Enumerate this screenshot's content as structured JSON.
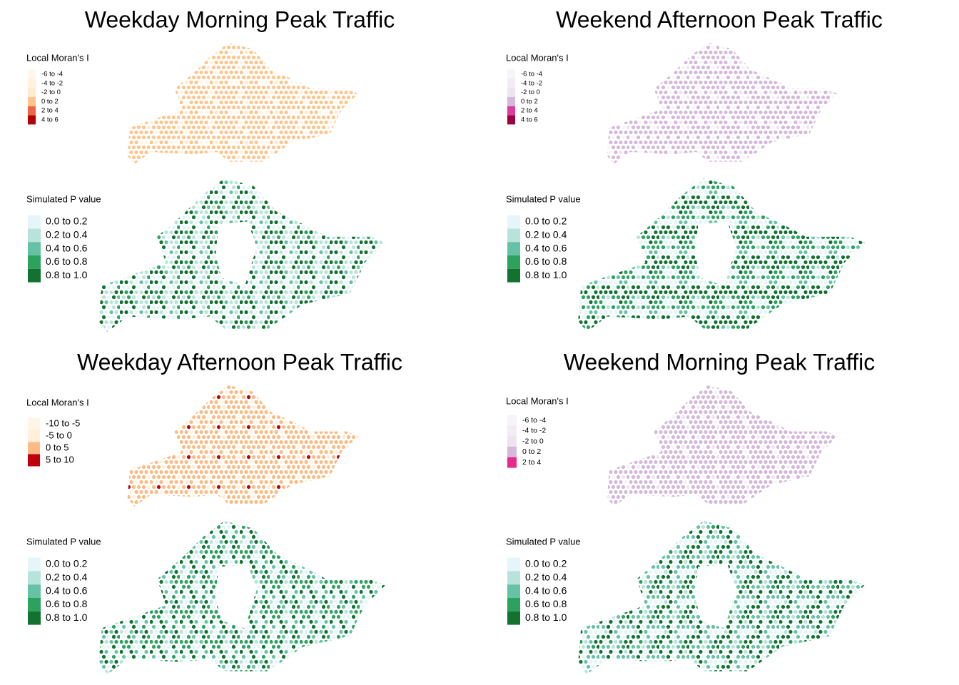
{
  "panels": [
    {
      "title": "Weekday Morning Peak Traffic",
      "maps": [
        {
          "legend_title": "Local Moran's I",
          "legend": [
            {
              "label": "-6 to -4",
              "color": "#fff7ec"
            },
            {
              "label": "-4 to -2",
              "color": "#fff2df"
            },
            {
              "label": "-2 to 0",
              "color": "#feecd2"
            },
            {
              "label": "0 to 2",
              "color": "#fdc58c"
            },
            {
              "label": "2 to 4",
              "color": "#ef6548"
            },
            {
              "label": "4 to 6",
              "color": "#b30000"
            }
          ]
        },
        {
          "legend_title": "Simulated P value",
          "legend": [
            {
              "label": "0.0 to 0.2",
              "color": "#e5f5f9"
            },
            {
              "label": "0.2 to 0.4",
              "color": "#b8e3da"
            },
            {
              "label": "0.4 to 0.6",
              "color": "#66c2a4"
            },
            {
              "label": "0.6 to 0.8",
              "color": "#2ca25f"
            },
            {
              "label": "0.8 to 1.0",
              "color": "#12722f"
            }
          ]
        }
      ]
    },
    {
      "title": "Weekend Afternoon Peak Traffic",
      "maps": [
        {
          "legend_title": "Local Moran's I",
          "legend": [
            {
              "label": "-6 to -4",
              "color": "#f7f4f9"
            },
            {
              "label": "-4 to -2",
              "color": "#f2ecf5"
            },
            {
              "label": "-2 to 0",
              "color": "#ede4f0"
            },
            {
              "label": "0 to 2",
              "color": "#d4b9da"
            },
            {
              "label": "2 to 4",
              "color": "#df3b9e"
            },
            {
              "label": "4 to 6",
              "color": "#980043"
            }
          ]
        },
        {
          "legend_title": "Simulated P value",
          "legend": [
            {
              "label": "0.0 to 0.2",
              "color": "#e5f5f9"
            },
            {
              "label": "0.2 to 0.4",
              "color": "#b8e3da"
            },
            {
              "label": "0.4 to 0.6",
              "color": "#66c2a4"
            },
            {
              "label": "0.6 to 0.8",
              "color": "#2ca25f"
            },
            {
              "label": "0.8 to 1.0",
              "color": "#12722f"
            }
          ]
        }
      ]
    },
    {
      "title": "Weekday Afternoon Peak Traffic",
      "maps": [
        {
          "legend_title": "Local Moran's I",
          "legend": [
            {
              "label": "-10 to -5",
              "color": "#fff5e6"
            },
            {
              "label": "-5 to 0",
              "color": "#ffefdb"
            },
            {
              "label": "0 to 5",
              "color": "#fdbb84"
            },
            {
              "label": "5 to 10",
              "color": "#c0000d"
            }
          ]
        },
        {
          "legend_title": "Simulated P value",
          "legend": [
            {
              "label": "0.0 to 0.2",
              "color": "#e5f5f9"
            },
            {
              "label": "0.2 to 0.4",
              "color": "#b8e3da"
            },
            {
              "label": "0.4 to 0.6",
              "color": "#66c2a4"
            },
            {
              "label": "0.6 to 0.8",
              "color": "#2ca25f"
            },
            {
              "label": "0.8 to 1.0",
              "color": "#12722f"
            }
          ]
        }
      ]
    },
    {
      "title": "Weekend Morning Peak Traffic",
      "maps": [
        {
          "legend_title": "Local Moran's I",
          "legend": [
            {
              "label": "-6 to -4",
              "color": "#f7f4f9"
            },
            {
              "label": "-4 to -2",
              "color": "#f2ecf5"
            },
            {
              "label": "-2 to 0",
              "color": "#ede4f0"
            },
            {
              "label": "0 to 2",
              "color": "#d4b9da"
            },
            {
              "label": "2 to 4",
              "color": "#e7298a"
            }
          ]
        },
        {
          "legend_title": "Simulated P value",
          "legend": [
            {
              "label": "0.0 to 0.2",
              "color": "#e5f5f9"
            },
            {
              "label": "0.2 to 0.4",
              "color": "#b8e3da"
            },
            {
              "label": "0.4 to 0.6",
              "color": "#66c2a4"
            },
            {
              "label": "0.6 to 0.8",
              "color": "#2ca25f"
            },
            {
              "label": "0.8 to 1.0",
              "color": "#12722f"
            }
          ]
        }
      ]
    }
  ]
}
